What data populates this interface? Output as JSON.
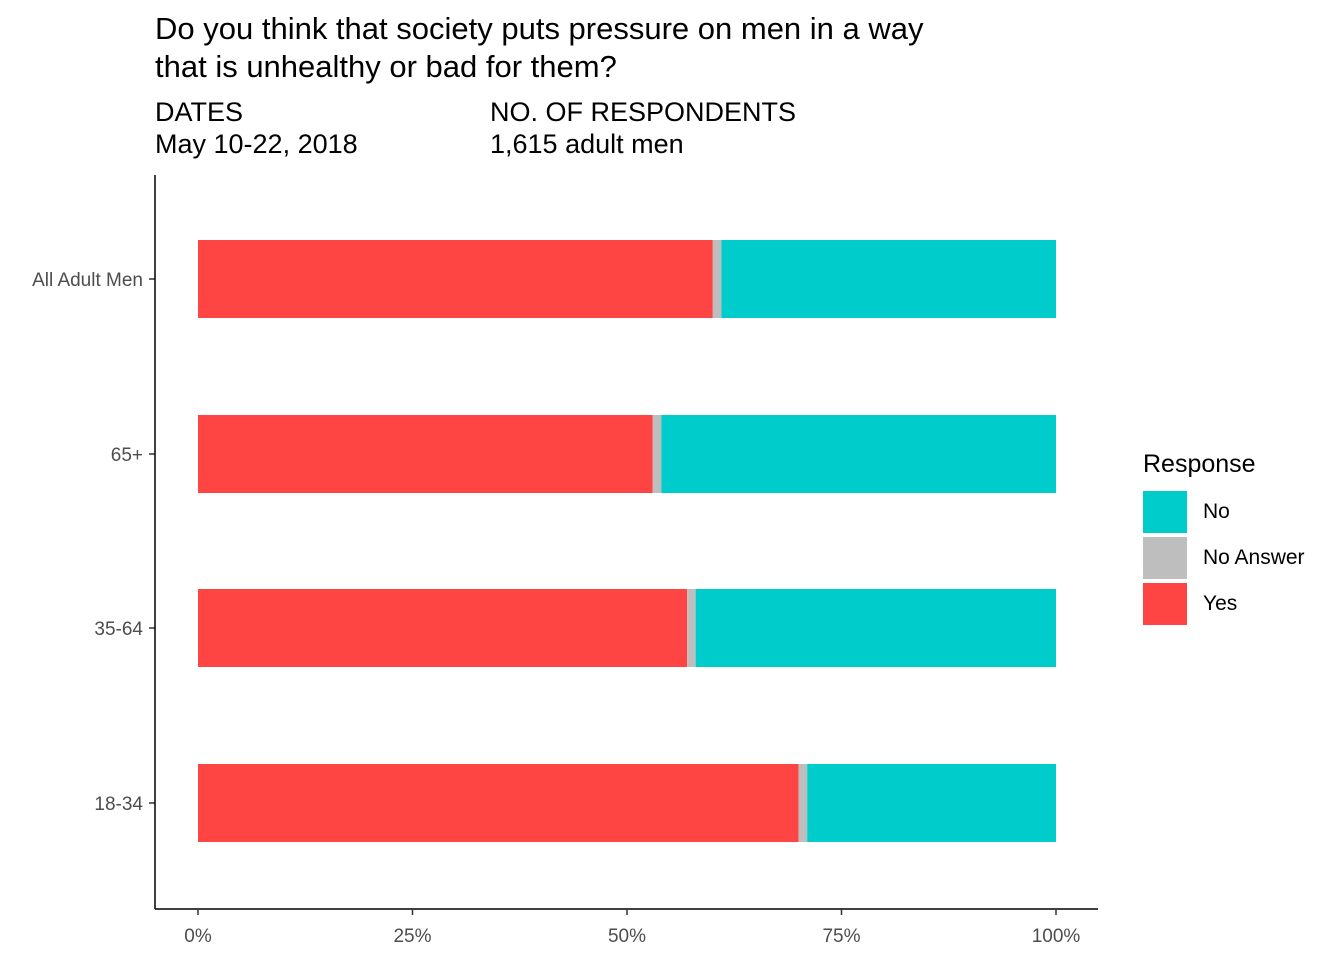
{
  "header": {
    "title_line1": "Do you think that society puts pressure on men in a way",
    "title_line2": "that is unhealthy or bad for them?",
    "dates_label": "DATES",
    "dates_value": "May 10-22, 2018",
    "respondents_label": "NO. OF RESPONDENTS",
    "respondents_value": "1,615 adult men"
  },
  "legend": {
    "title": "Response",
    "items": [
      {
        "label": "No",
        "color": "#00CCCC"
      },
      {
        "label": "No Answer",
        "color": "#BEBEBE"
      },
      {
        "label": "Yes",
        "color": "#FF4444"
      }
    ]
  },
  "chart_data": {
    "type": "bar",
    "orientation": "horizontal",
    "stacked": true,
    "categories": [
      "All Adult Men",
      "65+",
      "35-64",
      "18-34"
    ],
    "series": [
      {
        "name": "Yes",
        "color": "#FF4444",
        "values": [
          60,
          53,
          57,
          70
        ]
      },
      {
        "name": "No Answer",
        "color": "#BEBEBE",
        "values": [
          1,
          1,
          1,
          1
        ]
      },
      {
        "name": "No",
        "color": "#00CCCC",
        "values": [
          39,
          46,
          42,
          29
        ]
      }
    ],
    "xticks": [
      "0%",
      "25%",
      "50%",
      "75%",
      "100%"
    ],
    "xlim": [
      0,
      100
    ],
    "xlabel": "",
    "ylabel": "",
    "grid": false,
    "legend_position": "right"
  }
}
